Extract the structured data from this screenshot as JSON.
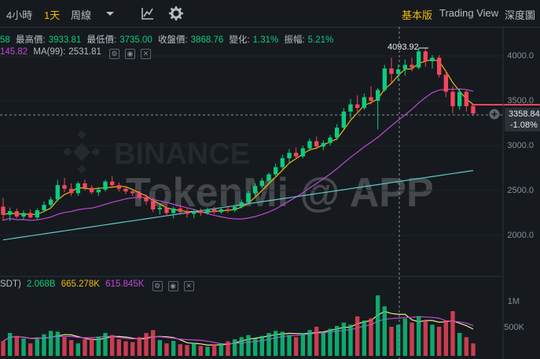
{
  "toolbar": {
    "interval_4h": "4小時",
    "interval_1d": "1天",
    "interval_week": "周線",
    "basic_label": "基本版",
    "tradingview_label": "Trading View",
    "depth_label": "深度圖"
  },
  "ohlc": {
    "prefix": "58",
    "high_label": "最高價:",
    "high_value": "3933.81",
    "low_label": "最低價:",
    "low_value": "3735.00",
    "close_label": "收盤價:",
    "close_value": "3868.76",
    "change_label": "變化:",
    "change_value": "1.31%",
    "amp_label": "振幅:",
    "amp_value": "5.21%"
  },
  "ma_legend": {
    "ma_prev_value": "145.82",
    "ma99_label": "MA(99):",
    "ma99_value": "2531.81"
  },
  "price_axis": [
    "4000.0",
    "3500.0",
    "3000.0",
    "2500.0",
    "2000.0"
  ],
  "high_marker": "4093.92",
  "current_price": {
    "value": "3358.84",
    "change": "-1.08%"
  },
  "watermark": {
    "brand": "BINANCE",
    "overlay": "TokenMi @ APP"
  },
  "volume_legend": {
    "prefix": "SDT)",
    "v1": "2.068B",
    "v2": "665.278K",
    "v3": "615.845K"
  },
  "volume_axis": [
    "1M",
    "500K"
  ],
  "colors": {
    "up": "#0ecb81",
    "down": "#f6465d",
    "ma7": "#f0b90b",
    "ma25": "#c147d9",
    "ma99": "#5fc9c9",
    "accent": "#f0b90b"
  },
  "chart_data": {
    "type": "candlestick",
    "y_range": [
      1800,
      4200
    ],
    "candles": [
      [
        2320,
        2420,
        2160,
        2230
      ],
      [
        2230,
        2310,
        2160,
        2270
      ],
      [
        2270,
        2300,
        2190,
        2210
      ],
      [
        2210,
        2280,
        2180,
        2250
      ],
      [
        2250,
        2290,
        2190,
        2200
      ],
      [
        2200,
        2300,
        2180,
        2280
      ],
      [
        2280,
        2380,
        2260,
        2340
      ],
      [
        2340,
        2430,
        2300,
        2400
      ],
      [
        2400,
        2620,
        2380,
        2560
      ],
      [
        2560,
        2640,
        2480,
        2520
      ],
      [
        2520,
        2580,
        2440,
        2470
      ],
      [
        2470,
        2600,
        2440,
        2580
      ],
      [
        2580,
        2620,
        2500,
        2530
      ],
      [
        2530,
        2560,
        2460,
        2480
      ],
      [
        2480,
        2540,
        2440,
        2510
      ],
      [
        2510,
        2620,
        2490,
        2600
      ],
      [
        2600,
        2660,
        2540,
        2560
      ],
      [
        2560,
        2590,
        2490,
        2520
      ],
      [
        2520,
        2550,
        2460,
        2490
      ],
      [
        2490,
        2520,
        2440,
        2470
      ],
      [
        2470,
        2500,
        2400,
        2420
      ],
      [
        2420,
        2460,
        2340,
        2380
      ],
      [
        2380,
        2420,
        2260,
        2290
      ],
      [
        2290,
        2340,
        2230,
        2310
      ],
      [
        2310,
        2350,
        2220,
        2250
      ],
      [
        2250,
        2320,
        2190,
        2300
      ],
      [
        2300,
        2340,
        2230,
        2260
      ],
      [
        2260,
        2300,
        2200,
        2240
      ],
      [
        2240,
        2290,
        2190,
        2270
      ],
      [
        2270,
        2300,
        2220,
        2250
      ],
      [
        2250,
        2310,
        2230,
        2290
      ],
      [
        2290,
        2320,
        2240,
        2260
      ],
      [
        2260,
        2310,
        2240,
        2290
      ],
      [
        2290,
        2330,
        2250,
        2280
      ],
      [
        2280,
        2340,
        2260,
        2320
      ],
      [
        2320,
        2400,
        2300,
        2370
      ],
      [
        2370,
        2500,
        2350,
        2470
      ],
      [
        2470,
        2580,
        2440,
        2550
      ],
      [
        2550,
        2640,
        2520,
        2610
      ],
      [
        2610,
        2700,
        2580,
        2680
      ],
      [
        2680,
        2800,
        2650,
        2760
      ],
      [
        2760,
        2900,
        2730,
        2860
      ],
      [
        2860,
        2960,
        2800,
        2920
      ],
      [
        2920,
        2980,
        2850,
        2880
      ],
      [
        2880,
        3000,
        2860,
        2970
      ],
      [
        2970,
        3080,
        2940,
        3050
      ],
      [
        3050,
        3100,
        2960,
        2990
      ],
      [
        2990,
        3060,
        2950,
        3030
      ],
      [
        3030,
        3120,
        3000,
        3090
      ],
      [
        3090,
        3240,
        3060,
        3200
      ],
      [
        3200,
        3420,
        3180,
        3380
      ],
      [
        3380,
        3520,
        3300,
        3460
      ],
      [
        3460,
        3560,
        3380,
        3420
      ],
      [
        3420,
        3580,
        3400,
        3540
      ],
      [
        3540,
        3660,
        3460,
        3500
      ],
      [
        3500,
        3640,
        3180,
        3620
      ],
      [
        3620,
        3900,
        3600,
        3860
      ],
      [
        3860,
        3980,
        3700,
        3800
      ],
      [
        3800,
        3900,
        3720,
        3850
      ],
      [
        3850,
        3960,
        3780,
        3900
      ],
      [
        3900,
        3980,
        3830,
        3870
      ],
      [
        3870,
        4093,
        3850,
        4050
      ],
      [
        4050,
        4090,
        3880,
        3940
      ],
      [
        3940,
        4010,
        3860,
        3980
      ],
      [
        3980,
        4010,
        3760,
        3790
      ],
      [
        3790,
        3840,
        3540,
        3600
      ],
      [
        3600,
        3660,
        3360,
        3440
      ],
      [
        3440,
        3640,
        3400,
        3600
      ],
      [
        3600,
        3620,
        3380,
        3440
      ],
      [
        3440,
        3470,
        3330,
        3358
      ]
    ],
    "volume": [
      0.35,
      0.55,
      0.48,
      0.42,
      0.3,
      0.4,
      0.52,
      0.6,
      0.58,
      0.45,
      0.38,
      0.3,
      0.4,
      0.42,
      0.46,
      0.55,
      0.5,
      0.4,
      0.35,
      0.33,
      0.45,
      0.55,
      0.62,
      0.38,
      0.3,
      0.36,
      0.28,
      0.26,
      0.3,
      0.24,
      0.22,
      0.28,
      0.3,
      0.35,
      0.4,
      0.45,
      0.5,
      0.42,
      0.48,
      0.55,
      0.6,
      0.58,
      0.5,
      0.45,
      0.55,
      0.62,
      0.7,
      0.55,
      0.65,
      0.72,
      0.8,
      0.75,
      0.95,
      0.85,
      0.9,
      1.6,
      1.25,
      0.7,
      0.75,
      0.9,
      0.8,
      0.95,
      0.85,
      0.75,
      0.7,
      0.85,
      1.1,
      0.55,
      0.45,
      0.3
    ]
  }
}
